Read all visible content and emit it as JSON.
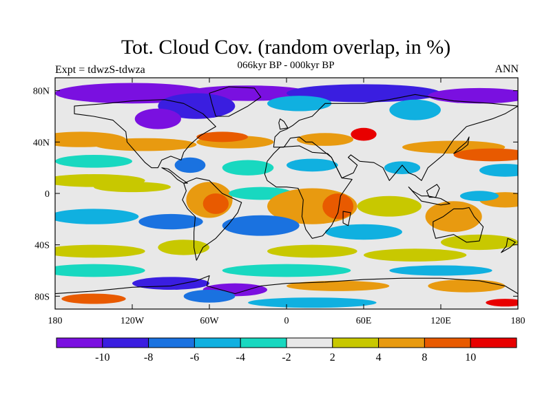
{
  "title": "Tot. Cloud Cov. (random overlap, in %)",
  "subtitle": "066kyr BP - 000kyr BP",
  "left_label": "Expt = tdwzS-tdwza",
  "right_label": "ANN",
  "map": {
    "projection": "cylindrical-equidistant",
    "lon_range": [
      -180,
      180
    ],
    "lat_range": [
      -90,
      90
    ],
    "lat_ticks": [
      {
        "value": 80,
        "label": "80N"
      },
      {
        "value": 40,
        "label": "40N"
      },
      {
        "value": 0,
        "label": "0"
      },
      {
        "value": -40,
        "label": "40S"
      },
      {
        "value": -80,
        "label": "80S"
      }
    ],
    "lon_ticks": [
      {
        "value": -180,
        "label": "180"
      },
      {
        "value": -120,
        "label": "120W"
      },
      {
        "value": -60,
        "label": "60W"
      },
      {
        "value": 0,
        "label": "0"
      },
      {
        "value": 60,
        "label": "60E"
      },
      {
        "value": 120,
        "label": "120E"
      },
      {
        "value": 180,
        "label": "180"
      }
    ],
    "background_color": "#e8e8e8"
  },
  "colorbar": {
    "colors": [
      "#7a10e0",
      "#3a1ee0",
      "#1a72e0",
      "#10b0e0",
      "#18d8c0",
      "#e8e8e8",
      "#c8c800",
      "#e89a10",
      "#e85a00",
      "#e80000"
    ],
    "labels": [
      "-10",
      "-8",
      "-6",
      "-4",
      "-2",
      "2",
      "4",
      "8",
      "10"
    ]
  }
}
